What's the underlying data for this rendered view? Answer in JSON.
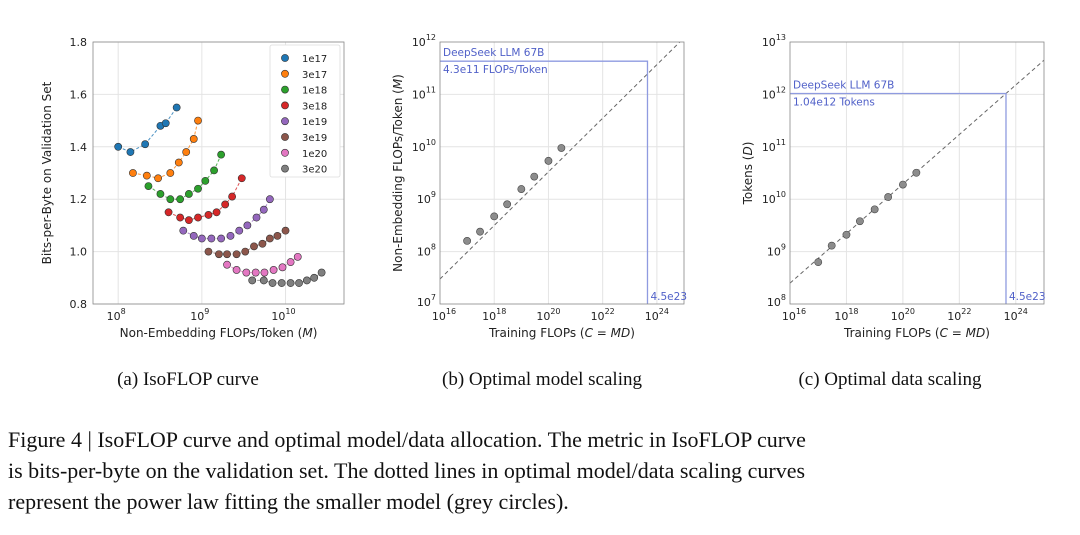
{
  "caption": {
    "line1": "Figure 4 | IsoFLOP curve and optimal model/data allocation.  The metric in IsoFLOP curve",
    "line2": "is bits-per-byte on the validation set.  The dotted lines in optimal model/data scaling curves",
    "line3": "represent the power law fitting the smaller model (grey circles)."
  },
  "chart_data": [
    {
      "type": "scatter",
      "subcaption": "(a)  IsoFLOP curve",
      "xlabel": "Non-Embedding FLOPs/Token (M)",
      "ylabel": "Bits-per-Byte on Validation Set",
      "x_scale": "log",
      "xlim": [
        50000000,
        50000000000
      ],
      "ylim": [
        0.8,
        1.8
      ],
      "y_ticks": [
        "0.8",
        "1.0",
        "1.2",
        "1.4",
        "1.6",
        "1.8"
      ],
      "x_ticks": [
        {
          "base": "10",
          "exp": "8"
        },
        {
          "base": "10",
          "exp": "9"
        },
        {
          "base": "10",
          "exp": "10"
        }
      ],
      "grid": true,
      "legend_position": "top-right",
      "series": [
        {
          "name": "1e17",
          "color": "#1f77b4",
          "x": [
            100000000,
            140000000,
            210000000,
            320000000,
            370000000,
            500000000
          ],
          "y": [
            1.4,
            1.38,
            1.41,
            1.48,
            1.49,
            1.55
          ]
        },
        {
          "name": "3e17",
          "color": "#ff7f0e",
          "x": [
            150000000,
            220000000,
            300000000,
            420000000,
            530000000,
            650000000,
            800000000,
            900000000
          ],
          "y": [
            1.3,
            1.29,
            1.28,
            1.3,
            1.34,
            1.38,
            1.43,
            1.5
          ]
        },
        {
          "name": "1e18",
          "color": "#2ca02c",
          "x": [
            230000000,
            320000000,
            420000000,
            550000000,
            700000000,
            900000000,
            1100000000,
            1400000000,
            1700000000
          ],
          "y": [
            1.25,
            1.22,
            1.2,
            1.2,
            1.22,
            1.24,
            1.27,
            1.31,
            1.37
          ]
        },
        {
          "name": "3e18",
          "color": "#d62728",
          "x": [
            400000000,
            550000000,
            700000000,
            900000000,
            1200000000,
            1500000000,
            1900000000,
            2300000000,
            3000000000
          ],
          "y": [
            1.15,
            1.13,
            1.12,
            1.13,
            1.14,
            1.15,
            1.18,
            1.21,
            1.28
          ]
        },
        {
          "name": "1e19",
          "color": "#9467bd",
          "x": [
            600000000,
            800000000,
            1000000000,
            1300000000,
            1700000000,
            2200000000,
            2800000000,
            3500000000,
            4500000000,
            5500000000,
            6500000000
          ],
          "y": [
            1.08,
            1.06,
            1.05,
            1.05,
            1.05,
            1.06,
            1.08,
            1.1,
            1.13,
            1.16,
            1.2
          ]
        },
        {
          "name": "3e19",
          "color": "#8c564b",
          "x": [
            1200000000,
            1600000000,
            2000000000,
            2600000000,
            3300000000,
            4200000000,
            5300000000,
            6500000000,
            8000000000,
            10000000000
          ],
          "y": [
            1.0,
            0.99,
            0.99,
            0.99,
            1.0,
            1.02,
            1.03,
            1.05,
            1.06,
            1.08
          ]
        },
        {
          "name": "1e20",
          "color": "#e377c2",
          "x": [
            2000000000,
            2600000000,
            3400000000,
            4400000000,
            5600000000,
            7200000000,
            9200000000,
            11500000000,
            14000000000
          ],
          "y": [
            0.95,
            0.93,
            0.92,
            0.92,
            0.92,
            0.93,
            0.94,
            0.96,
            0.98
          ]
        },
        {
          "name": "3e20",
          "color": "#7f7f7f",
          "x": [
            4000000000,
            5500000000,
            7000000000,
            9000000000,
            11500000000,
            14500000000,
            18000000000,
            22000000000,
            27000000000
          ],
          "y": [
            0.89,
            0.89,
            0.88,
            0.88,
            0.88,
            0.88,
            0.89,
            0.9,
            0.92
          ]
        }
      ]
    },
    {
      "type": "scatter",
      "subcaption": "(b)  Optimal model scaling",
      "xlabel": "Training FLOPs (C = MD)",
      "ylabel": "Non-Embedding FLOPs/Token (M)",
      "x_scale": "log",
      "y_scale": "log",
      "xlim": [
        1e+16,
        1e+25
      ],
      "ylim": [
        10000000.0,
        1000000000000.0
      ],
      "x_ticks": [
        {
          "base": "10",
          "exp": "16"
        },
        {
          "base": "10",
          "exp": "18"
        },
        {
          "base": "10",
          "exp": "20"
        },
        {
          "base": "10",
          "exp": "22"
        },
        {
          "base": "10",
          "exp": "24"
        }
      ],
      "y_ticks": [
        {
          "base": "10",
          "exp": "7"
        },
        {
          "base": "10",
          "exp": "8"
        },
        {
          "base": "10",
          "exp": "9"
        },
        {
          "base": "10",
          "exp": "10"
        },
        {
          "base": "10",
          "exp": "11"
        },
        {
          "base": "10",
          "exp": "12"
        }
      ],
      "grid": true,
      "fit_line": {
        "x": [
          1e+16,
          1e+25
        ],
        "y": [
          30000000,
          1200000000000
        ]
      },
      "points": {
        "x": [
          1e+17,
          3e+17,
          1e+18,
          3e+18,
          1e+19,
          3e+19,
          1e+20,
          3e+20
        ],
        "y": [
          160000000,
          240000000,
          470000000,
          800000000,
          1560000000,
          2700000000,
          5400000000,
          9500000000
        ]
      },
      "annotation": {
        "x": 4.5e+23,
        "y": 430000000000,
        "label": "DeepSeek LLM 67B",
        "value": "4.3e11 FLOPs/Token",
        "x_label": "4.5e23"
      }
    },
    {
      "type": "scatter",
      "subcaption": "(c)  Optimal data scaling",
      "xlabel": "Training FLOPs (C = MD)",
      "ylabel": "Tokens (D)",
      "x_scale": "log",
      "y_scale": "log",
      "xlim": [
        1e+16,
        1e+25
      ],
      "ylim": [
        100000000.0,
        10000000000000.0
      ],
      "x_ticks": [
        {
          "base": "10",
          "exp": "16"
        },
        {
          "base": "10",
          "exp": "18"
        },
        {
          "base": "10",
          "exp": "20"
        },
        {
          "base": "10",
          "exp": "22"
        },
        {
          "base": "10",
          "exp": "24"
        }
      ],
      "y_ticks": [
        {
          "base": "10",
          "exp": "8"
        },
        {
          "base": "10",
          "exp": "9"
        },
        {
          "base": "10",
          "exp": "10"
        },
        {
          "base": "10",
          "exp": "11"
        },
        {
          "base": "10",
          "exp": "12"
        },
        {
          "base": "10",
          "exp": "13"
        }
      ],
      "grid": true,
      "fit_line": {
        "x": [
          1e+16,
          1e+25
        ],
        "y": [
          250000000,
          4500000000000
        ]
      },
      "points": {
        "x": [
          1e+17,
          3e+17,
          1e+18,
          3e+18,
          1e+19,
          3e+19,
          1e+20,
          3e+20
        ],
        "y": [
          630000000,
          1300000000,
          2100000000,
          3800000000,
          6400000000,
          11000000000,
          19000000000,
          32000000000
        ]
      },
      "annotation": {
        "x": 4.5e+23,
        "y": 1040000000000,
        "label": "DeepSeek LLM 67B",
        "value": "1.04e12 Tokens",
        "x_label": "4.5e23"
      }
    }
  ]
}
